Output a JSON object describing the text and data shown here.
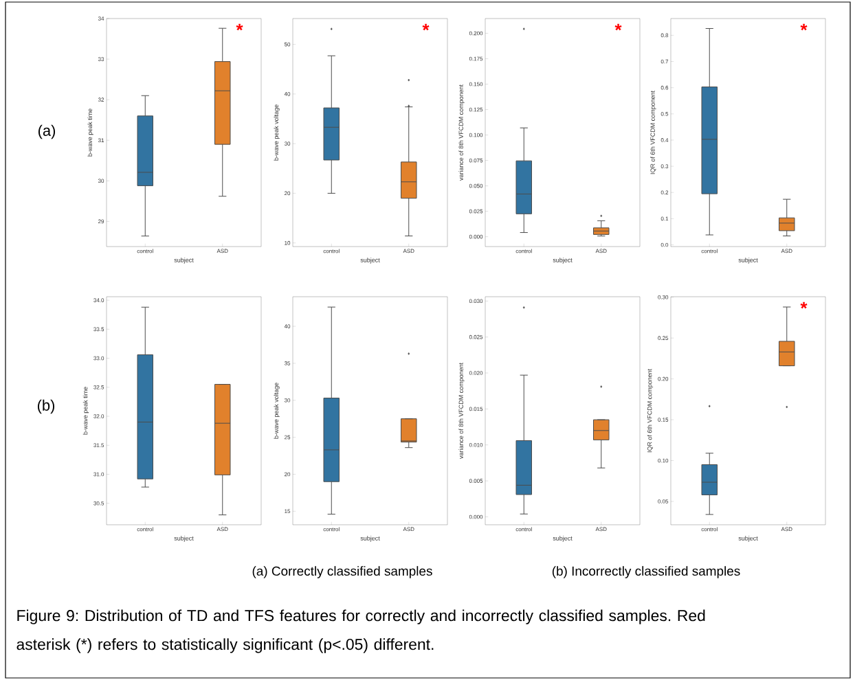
{
  "chart_data": [
    {
      "type": "box",
      "categories": [
        "control",
        "ASD"
      ],
      "colors": [
        "#3274a1",
        "#e1812c"
      ],
      "xlabel": "subject",
      "ylabel": "b-wave peak time",
      "ylim": [
        28.38,
        34.0
      ],
      "yticks": [
        29,
        30,
        31,
        32,
        33,
        34
      ],
      "annotations": [
        "*"
      ],
      "boxes": [
        {
          "low": 28.64,
          "q1": 29.88,
          "median": 30.21,
          "q3": 31.6,
          "high": 32.1
        },
        {
          "low": 29.62,
          "q1": 30.9,
          "median": 32.22,
          "q3": 32.94,
          "high": 33.76
        }
      ]
    },
    {
      "type": "box",
      "categories": [
        "control",
        "ASD"
      ],
      "colors": [
        "#3274a1",
        "#e1812c"
      ],
      "xlabel": "subject",
      "ylabel": "b-wave peak voltage",
      "ylim": [
        9.26,
        55.2
      ],
      "yticks": [
        10,
        20,
        30,
        40,
        50
      ],
      "annotations": [
        "*"
      ],
      "boxes": [
        {
          "low": 20.0,
          "q1": 26.7,
          "median": 33.3,
          "q3": 37.2,
          "high": 47.7,
          "outliers": [
            53.1
          ]
        },
        {
          "low": 11.4,
          "q1": 19.0,
          "median": 22.3,
          "q3": 26.3,
          "high": 37.4,
          "outliers": [
            42.8,
            37.6
          ]
        }
      ]
    },
    {
      "type": "box",
      "categories": [
        "control",
        "ASD"
      ],
      "colors": [
        "#3274a1",
        "#e1812c"
      ],
      "xlabel": "subject",
      "ylabel": "variance of 8th VFCDM component",
      "ylim": [
        -0.0097,
        0.2145
      ],
      "yticks": [
        {
          "value": 0,
          "label": "0.000"
        },
        0.025,
        {
          "value": 0.05,
          "label": "0.050"
        },
        0.075,
        {
          "value": 0.1,
          "label": "0.100"
        },
        0.125,
        {
          "value": 0.15,
          "label": "0.150"
        },
        0.175,
        {
          "value": 0.2,
          "label": "0.200"
        }
      ],
      "annotations": [
        "*"
      ],
      "boxes": [
        {
          "low": 0.0041,
          "q1": 0.0225,
          "median": 0.042,
          "q3": 0.0746,
          "high": 0.107,
          "outliers": [
            0.2043
          ]
        },
        {
          "low": 0.0007,
          "q1": 0.0022,
          "median": 0.0056,
          "q3": 0.0087,
          "high": 0.0157,
          "outliers": [
            0.0205
          ]
        }
      ]
    },
    {
      "type": "box",
      "categories": [
        "control",
        "ASD"
      ],
      "colors": [
        "#3274a1",
        "#e1812c"
      ],
      "xlabel": "subject",
      "ylabel": "IQR of 6th VFCDM component",
      "ylim": [
        -0.0066,
        0.864
      ],
      "yticks": [
        {
          "value": 0,
          "label": "0.0"
        },
        0.1,
        0.2,
        0.3,
        0.4,
        0.5,
        0.6,
        0.7,
        0.8
      ],
      "annotations": [
        "*"
      ],
      "boxes": [
        {
          "low": 0.038,
          "q1": 0.195,
          "median": 0.403,
          "q3": 0.603,
          "high": 0.826
        },
        {
          "low": 0.034,
          "q1": 0.054,
          "median": 0.083,
          "q3": 0.103,
          "high": 0.174
        }
      ]
    },
    {
      "type": "box",
      "categories": [
        "control",
        "ASD"
      ],
      "colors": [
        "#3274a1",
        "#e1812c"
      ],
      "xlabel": "subject",
      "ylabel": "b-wave peak time",
      "ylim": [
        30.13,
        34.06
      ],
      "yticks": [
        30.5,
        {
          "value": 31,
          "label": "31.0"
        },
        31.5,
        {
          "value": 32,
          "label": "32.0"
        },
        32.5,
        {
          "value": 33,
          "label": "33.0"
        },
        33.5,
        {
          "value": 34,
          "label": "34.0"
        }
      ],
      "boxes": [
        {
          "low": 30.78,
          "q1": 30.92,
          "median": 31.9,
          "q3": 33.06,
          "high": 33.88
        },
        {
          "low": 30.3,
          "q1": 30.99,
          "median": 31.88,
          "q3": 32.55,
          "high": 32.55
        }
      ]
    },
    {
      "type": "box",
      "categories": [
        "control",
        "ASD"
      ],
      "colors": [
        "#3274a1",
        "#e1812c"
      ],
      "xlabel": "subject",
      "ylabel": "b-wave peak voltage",
      "ylim": [
        13.17,
        44.0
      ],
      "yticks": [
        15,
        20,
        25,
        30,
        35,
        40
      ],
      "boxes": [
        {
          "low": 14.6,
          "q1": 19.0,
          "median": 23.3,
          "q3": 30.3,
          "high": 42.6
        },
        {
          "low": 23.6,
          "q1": 24.35,
          "median": 24.5,
          "q3": 27.5,
          "high": 27.5,
          "outliers": [
            36.3
          ]
        }
      ]
    },
    {
      "type": "box",
      "categories": [
        "control",
        "ASD"
      ],
      "colors": [
        "#3274a1",
        "#e1812c"
      ],
      "xlabel": "subject",
      "ylabel": "variance of 8th VFCDM component",
      "ylim": [
        -0.0011,
        0.0306
      ],
      "yticks": [
        {
          "value": 0,
          "label": "0.000"
        },
        0.005,
        {
          "value": 0.01,
          "label": "0.010"
        },
        0.015,
        {
          "value": 0.02,
          "label": "0.020"
        },
        0.025,
        {
          "value": 0.03,
          "label": "0.030"
        }
      ],
      "boxes": [
        {
          "low": 0.0004,
          "q1": 0.0031,
          "median": 0.0044,
          "q3": 0.0106,
          "high": 0.0197,
          "outliers": [
            0.0291
          ]
        },
        {
          "low": 0.0068,
          "q1": 0.0107,
          "median": 0.012,
          "q3": 0.0135,
          "high": 0.0135,
          "outliers": [
            0.0181
          ]
        }
      ]
    },
    {
      "type": "box",
      "categories": [
        "control",
        "ASD"
      ],
      "colors": [
        "#3274a1",
        "#e1812c"
      ],
      "xlabel": "subject",
      "ylabel": "IQR of 6th VFCDM component",
      "ylim": [
        0.0214,
        0.3006
      ],
      "yticks": [
        0.05,
        {
          "value": 0.1,
          "label": "0.10"
        },
        0.15,
        {
          "value": 0.2,
          "label": "0.20"
        },
        0.25,
        {
          "value": 0.3,
          "label": "0.30"
        }
      ],
      "annotations": [
        "*"
      ],
      "boxes": [
        {
          "low": 0.034,
          "q1": 0.058,
          "median": 0.0735,
          "q3": 0.095,
          "high": 0.109,
          "outliers": [
            0.1666
          ]
        },
        {
          "low": 0.216,
          "q1": 0.216,
          "median": 0.233,
          "q3": 0.246,
          "high": 0.288,
          "outliers": [
            0.1656
          ]
        }
      ]
    },
    {
      "type": "other",
      "annotations": [
        "(a)",
        "(b)",
        "(a) Correctly classified samples",
        "(b) Incorrectly classified samples",
        "Figure 9: Distribution of TD and TFS features for correctly and incorrectly classified samples. Red asterisk (*) refers to statistically significant (p<.05) different."
      ]
    }
  ]
}
